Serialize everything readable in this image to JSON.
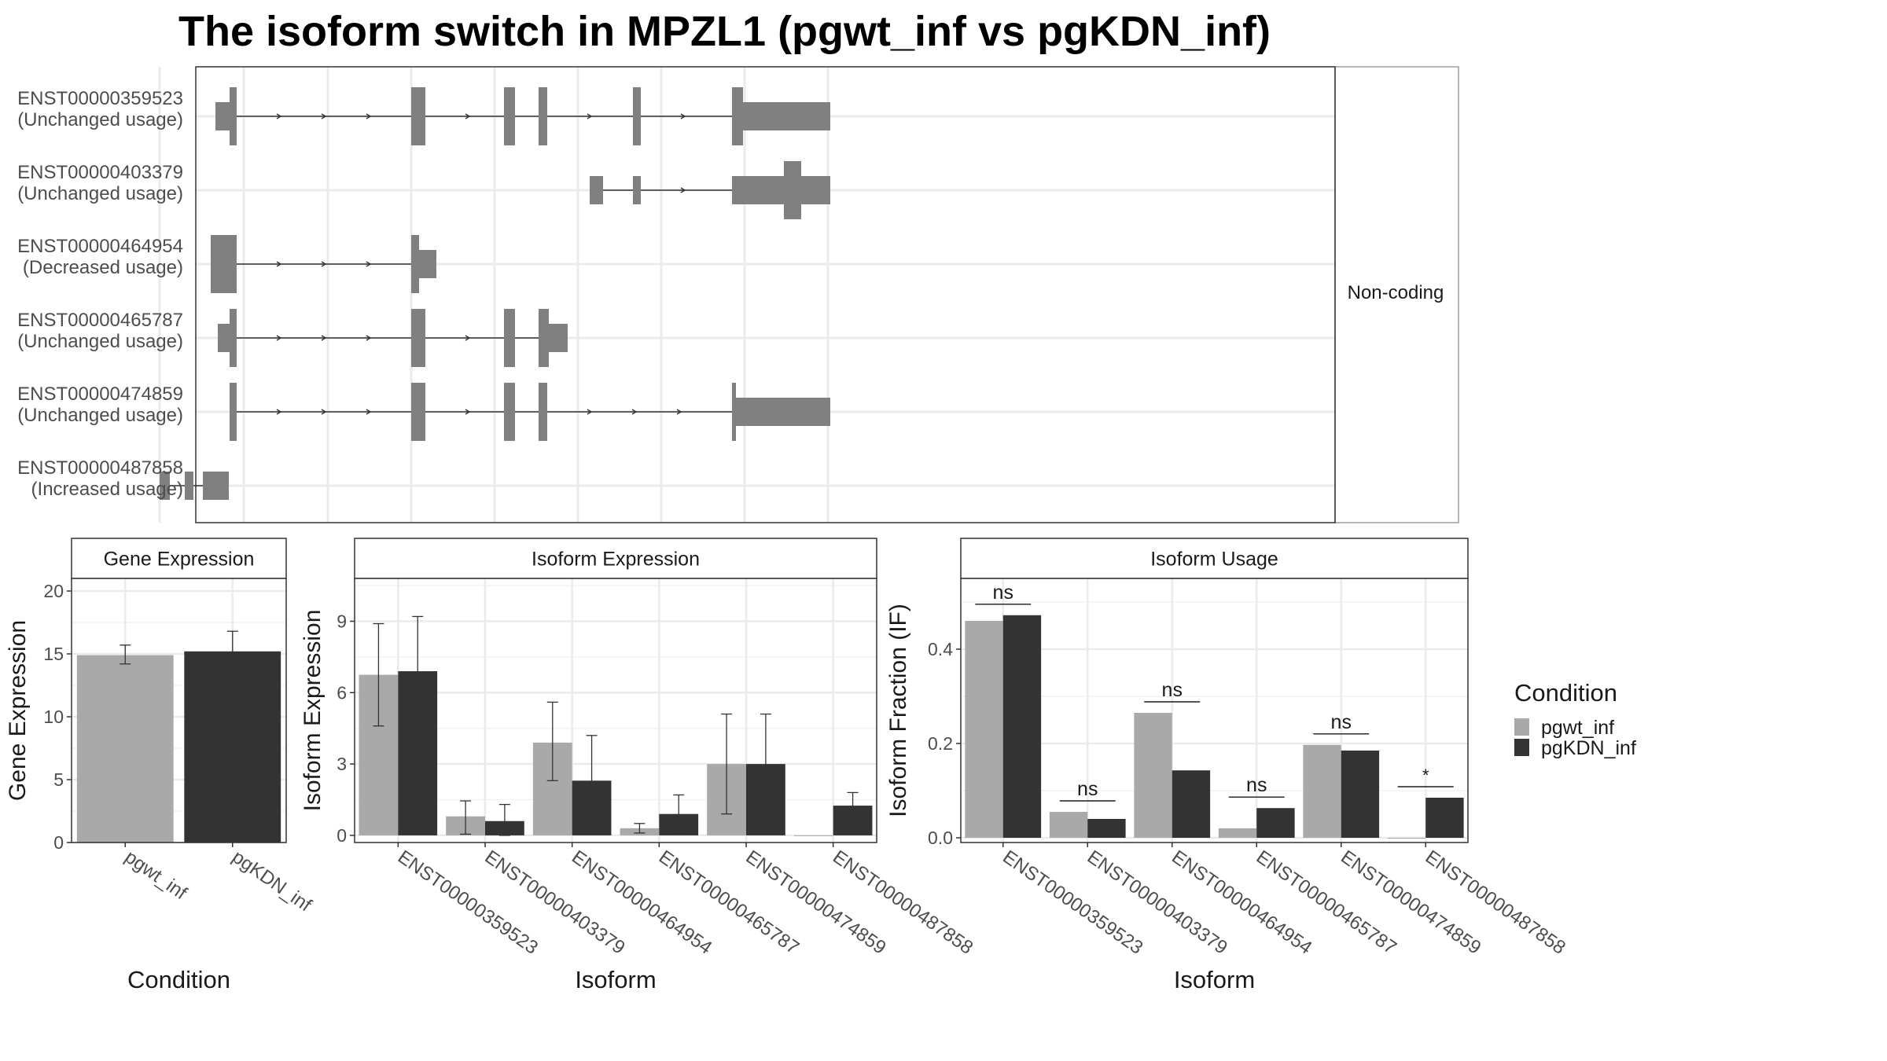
{
  "title": "The isoform switch in MPZL1 (pgwt_inf vs pgKDN_inf)",
  "colors": {
    "exon": "#808080",
    "intron": "#333333",
    "pgwt_inf": "#a9a9a9",
    "pgKDN_inf": "#333333",
    "grid": "#ebebeb",
    "panel_border": "#333333",
    "strip_border": "#9e9e9e"
  },
  "structure_panel": {
    "side_label": "Non-coding",
    "isoforms": [
      {
        "id": "ENST00000359523",
        "status": "(Unchanged usage)",
        "exons": [
          [
            274,
            292,
            "thin"
          ],
          [
            292,
            301,
            "thick"
          ],
          [
            523,
            541,
            "thick"
          ],
          [
            641,
            655,
            "thick"
          ],
          [
            685,
            696,
            "thick"
          ],
          [
            805,
            815,
            "thick"
          ],
          [
            931,
            945,
            "thick"
          ],
          [
            945,
            1056,
            "thin"
          ]
        ]
      },
      {
        "id": "ENST00000403379",
        "status": "(Unchanged usage)",
        "exons": [
          [
            750,
            767,
            "thin"
          ],
          [
            805,
            815,
            "thin"
          ],
          [
            931,
            997,
            "thin"
          ],
          [
            997,
            1019,
            "thick"
          ],
          [
            1019,
            1056,
            "thin"
          ]
        ]
      },
      {
        "id": "ENST00000464954",
        "status": "(Decreased usage)",
        "exons": [
          [
            268,
            301,
            "thick"
          ],
          [
            523,
            533,
            "thick"
          ],
          [
            533,
            555,
            "thin"
          ]
        ]
      },
      {
        "id": "ENST00000465787",
        "status": "(Unchanged usage)",
        "exons": [
          [
            277,
            292,
            "thin"
          ],
          [
            292,
            301,
            "thick"
          ],
          [
            523,
            541,
            "thick"
          ],
          [
            641,
            655,
            "thick"
          ],
          [
            685,
            698,
            "thick"
          ],
          [
            698,
            722,
            "thin"
          ]
        ]
      },
      {
        "id": "ENST00000474859",
        "status": "(Unchanged usage)",
        "exons": [
          [
            292,
            301,
            "thick"
          ],
          [
            523,
            541,
            "thick"
          ],
          [
            641,
            655,
            "thick"
          ],
          [
            685,
            696,
            "thick"
          ],
          [
            931,
            936,
            "thick"
          ],
          [
            936,
            1056,
            "thin"
          ]
        ]
      },
      {
        "id": "ENST00000487858",
        "status": "(Increased usage)",
        "exons": [
          [
            203,
            216,
            "thin"
          ],
          [
            235,
            246,
            "thin"
          ],
          [
            258,
            291,
            "thin"
          ]
        ]
      }
    ]
  },
  "chart_data": [
    {
      "type": "bar",
      "strip": "Gene Expression",
      "xlabel": "Condition",
      "ylabel": "Gene Expression",
      "categories": [
        "pgwt_inf",
        "pgKDN_inf"
      ],
      "values": [
        14.9,
        15.2
      ],
      "error_low": [
        14.2,
        13.7
      ],
      "error_high": [
        15.7,
        16.8
      ],
      "ylim": [
        0,
        21
      ],
      "yticks": [
        0,
        5,
        10,
        15,
        20
      ]
    },
    {
      "type": "bar",
      "strip": "Isoform Expression",
      "xlabel": "Isoform",
      "ylabel": "Isoform Expression",
      "categories": [
        "ENST00000359523",
        "ENST00000403379",
        "ENST00000464954",
        "ENST00000465787",
        "ENST00000474859",
        "ENST00000487858"
      ],
      "series": [
        {
          "name": "pgwt_inf",
          "values": [
            6.75,
            0.8,
            3.9,
            0.3,
            3.0,
            0.0
          ],
          "error_low": [
            4.6,
            0.05,
            2.3,
            0.1,
            0.9,
            0.0
          ],
          "error_high": [
            8.9,
            1.45,
            5.6,
            0.5,
            5.1,
            0.0
          ]
        },
        {
          "name": "pgKDN_inf",
          "values": [
            6.9,
            0.6,
            2.3,
            0.9,
            3.0,
            1.25
          ],
          "error_low": [
            4.7,
            0.0,
            0.5,
            0.1,
            0.9,
            0.7
          ],
          "error_high": [
            9.2,
            1.3,
            4.2,
            1.7,
            5.1,
            1.8
          ]
        }
      ],
      "ylim": [
        -0.3,
        10.8
      ],
      "yticks": [
        0,
        3,
        6,
        9
      ]
    },
    {
      "type": "bar",
      "strip": "Isoform Usage",
      "xlabel": "Isoform",
      "ylabel": "Isoform Fraction (IF)",
      "categories": [
        "ENST00000359523",
        "ENST00000403379",
        "ENST00000464954",
        "ENST00000465787",
        "ENST00000474859",
        "ENST00000487858"
      ],
      "series": [
        {
          "name": "pgwt_inf",
          "values": [
            0.46,
            0.055,
            0.265,
            0.02,
            0.197,
            0.0
          ]
        },
        {
          "name": "pgKDN_inf",
          "values": [
            0.472,
            0.04,
            0.143,
            0.063,
            0.185,
            0.085
          ]
        }
      ],
      "significance": [
        "ns",
        "ns",
        "ns",
        "ns",
        "ns",
        "*"
      ],
      "ylim": [
        -0.01,
        0.55
      ],
      "yticks": [
        0.0,
        0.2,
        0.4
      ],
      "ytick_labels": [
        "0.0",
        "0.2",
        "0.4"
      ]
    }
  ],
  "legend": {
    "title": "Condition",
    "items": [
      {
        "label": "pgwt_inf",
        "color": "#a9a9a9"
      },
      {
        "label": "pgKDN_inf",
        "color": "#333333"
      }
    ]
  }
}
